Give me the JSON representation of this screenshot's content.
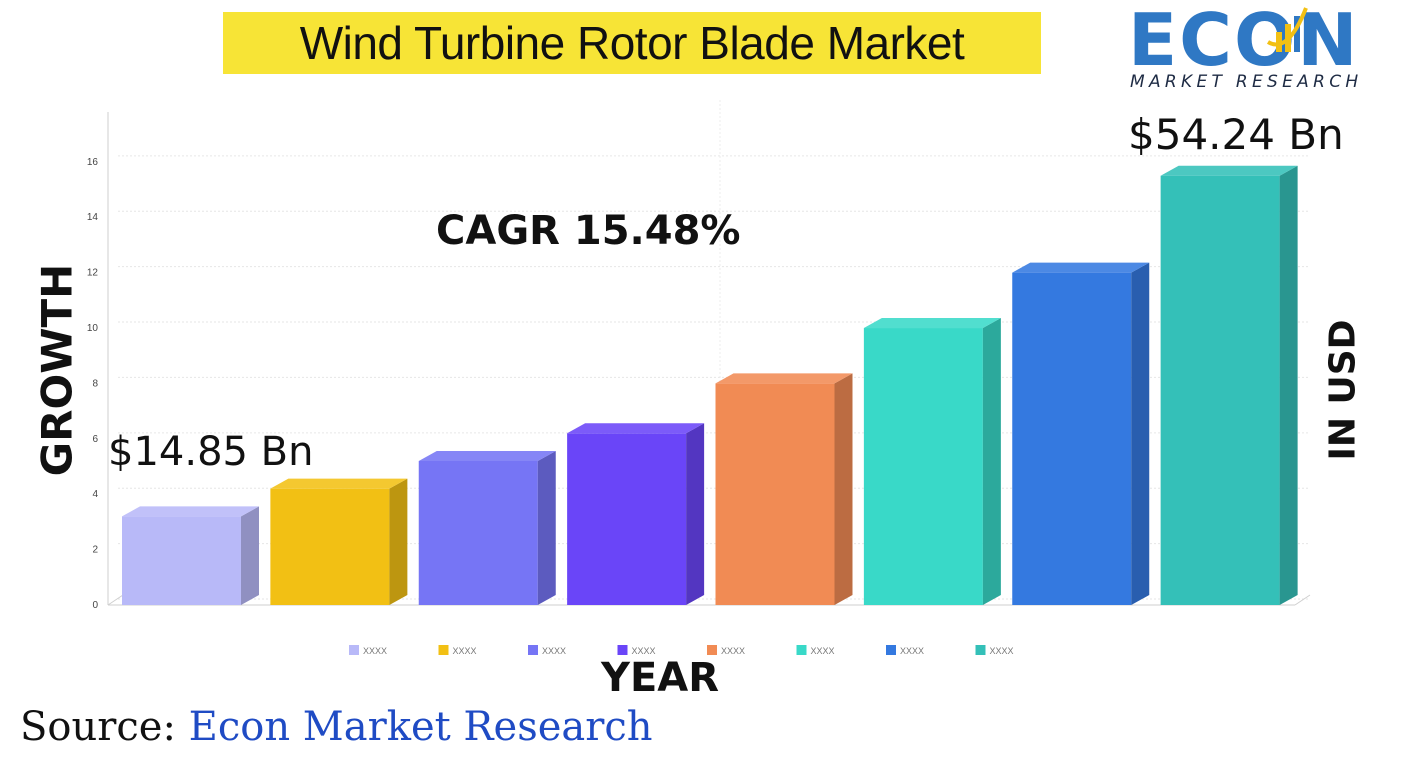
{
  "header": {
    "title": "Wind Turbine Rotor Blade Market"
  },
  "logo": {
    "word": "ECON",
    "subtitle": "MARKET RESEARCH"
  },
  "chart_data": {
    "type": "bar",
    "categories": [
      "XXXX",
      "XXXX",
      "XXXX",
      "XXXX",
      "XXXX",
      "XXXX",
      "XXXX",
      "XXXX"
    ],
    "values": [
      3.2,
      4.2,
      5.2,
      6.2,
      8.0,
      10.0,
      12.0,
      15.5
    ],
    "colors": [
      "#b8b9f8",
      "#f2c014",
      "#7675f5",
      "#6a45f8",
      "#f18b54",
      "#39d9c8",
      "#3479e0",
      "#34c0b8"
    ],
    "yticks": [
      0,
      2,
      4,
      6,
      8,
      10,
      12,
      14,
      16
    ],
    "ylim": [
      0,
      17.8
    ],
    "xlabel": "YEAR",
    "ylabel_left": "GROWTH",
    "ylabel_right": "IN USD",
    "legend_position": "bottom",
    "grid": true,
    "annotations": {
      "cagr": "CAGR 15.48%",
      "start_value": "$14.85 Bn",
      "end_value": "$54.24 Bn"
    }
  },
  "source": {
    "label": "Source: ",
    "name": "Econ Market Research"
  }
}
